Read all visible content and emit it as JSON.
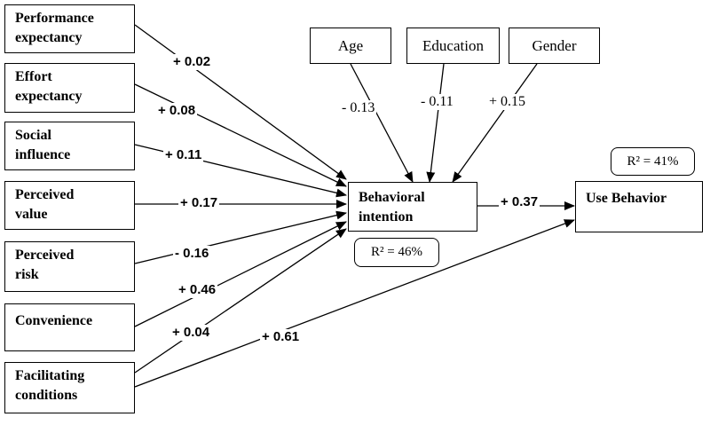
{
  "predictors": [
    {
      "id": "pe",
      "label": "Performance\nexpectancy",
      "coef": "+ 0.02"
    },
    {
      "id": "ee",
      "label": "Effort\nexpectancy",
      "coef": "+ 0.08"
    },
    {
      "id": "si",
      "label": "Social\ninfluence",
      "coef": "+ 0.11"
    },
    {
      "id": "pv",
      "label": "Perceived\n value",
      "coef": "+ 0.17"
    },
    {
      "id": "pr",
      "label": "Perceived\nrisk",
      "coef": "- 0.16"
    },
    {
      "id": "cv",
      "label": "Convenience",
      "coef": "+ 0.46"
    },
    {
      "id": "fc",
      "label": "Facilitating\nconditions",
      "coef": "+ 0.04"
    }
  ],
  "moderators": [
    {
      "id": "age",
      "label": "Age",
      "coef": "- 0.13"
    },
    {
      "id": "edu",
      "label": "Education",
      "coef": "- 0.11"
    },
    {
      "id": "gen",
      "label": "Gender",
      "coef": "+ 0.15"
    }
  ],
  "behavioral_intention": {
    "label": "Behavioral\nintention",
    "r2": "R² = 46%"
  },
  "use_behavior": {
    "label": "Use Behavior",
    "r2": "R² = 41%"
  },
  "bi_to_use_coef": "+ 0.37",
  "fc_to_use_coef": "+ 0.61"
}
